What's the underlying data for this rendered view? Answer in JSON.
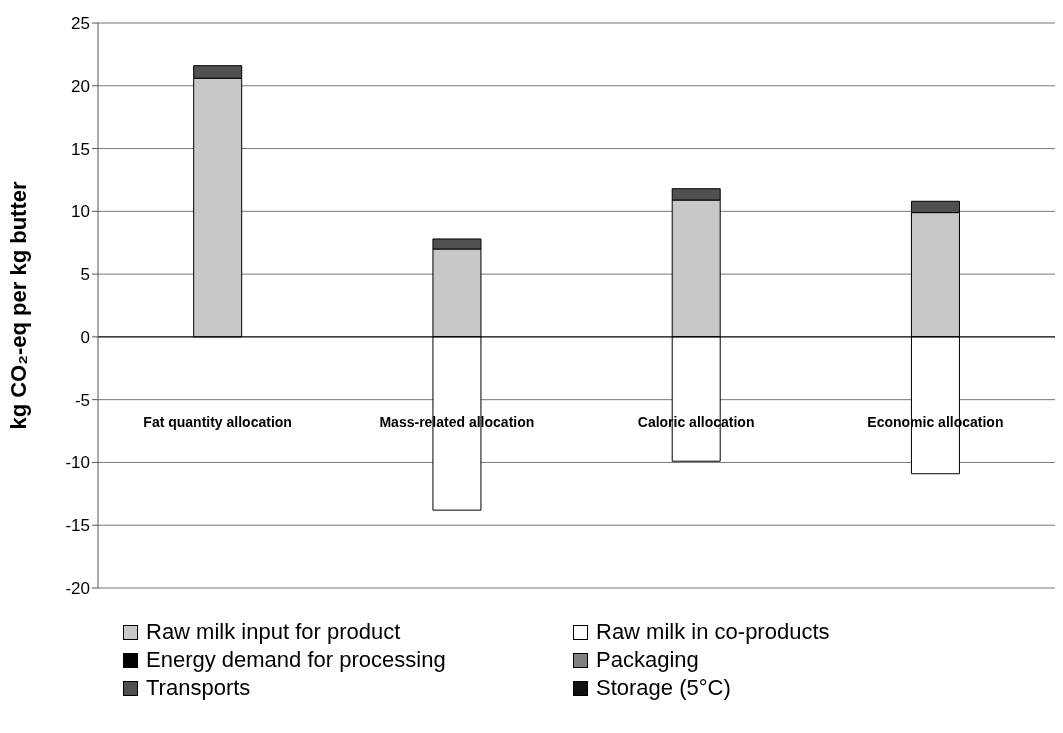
{
  "chart_data": {
    "type": "bar",
    "stacked": true,
    "ylabel": "kg CO₂-eq per kg butter",
    "categories": [
      "Fat quantity allocation",
      "Mass-related allocation",
      "Caloric allocation",
      "Economic allocation"
    ],
    "series": [
      {
        "name": "Raw milk input for product",
        "color": "#c8c8c8",
        "values": [
          20.6,
          7.0,
          10.9,
          9.9
        ]
      },
      {
        "name": "Raw milk in co-products",
        "color": "#ffffff",
        "values": [
          null,
          -13.8,
          -9.9,
          -10.9
        ]
      },
      {
        "name": "Energy demand for processing",
        "color": "#000000",
        "values": [
          null,
          null,
          null,
          null
        ]
      },
      {
        "name": "Packaging",
        "color": "#808080",
        "values": [
          null,
          null,
          null,
          null
        ]
      },
      {
        "name": "Transports",
        "color": "#505050",
        "values": [
          1.0,
          0.8,
          0.9,
          0.9
        ]
      },
      {
        "name": "Storage (5°C)",
        "color": "#101010",
        "values": [
          null,
          null,
          null,
          null
        ]
      }
    ],
    "ylim": [
      -20,
      25
    ],
    "yticks": [
      -20,
      -15,
      -10,
      -5,
      0,
      5,
      10,
      15,
      20,
      25
    ],
    "grid": "y",
    "legend": "bottom"
  }
}
